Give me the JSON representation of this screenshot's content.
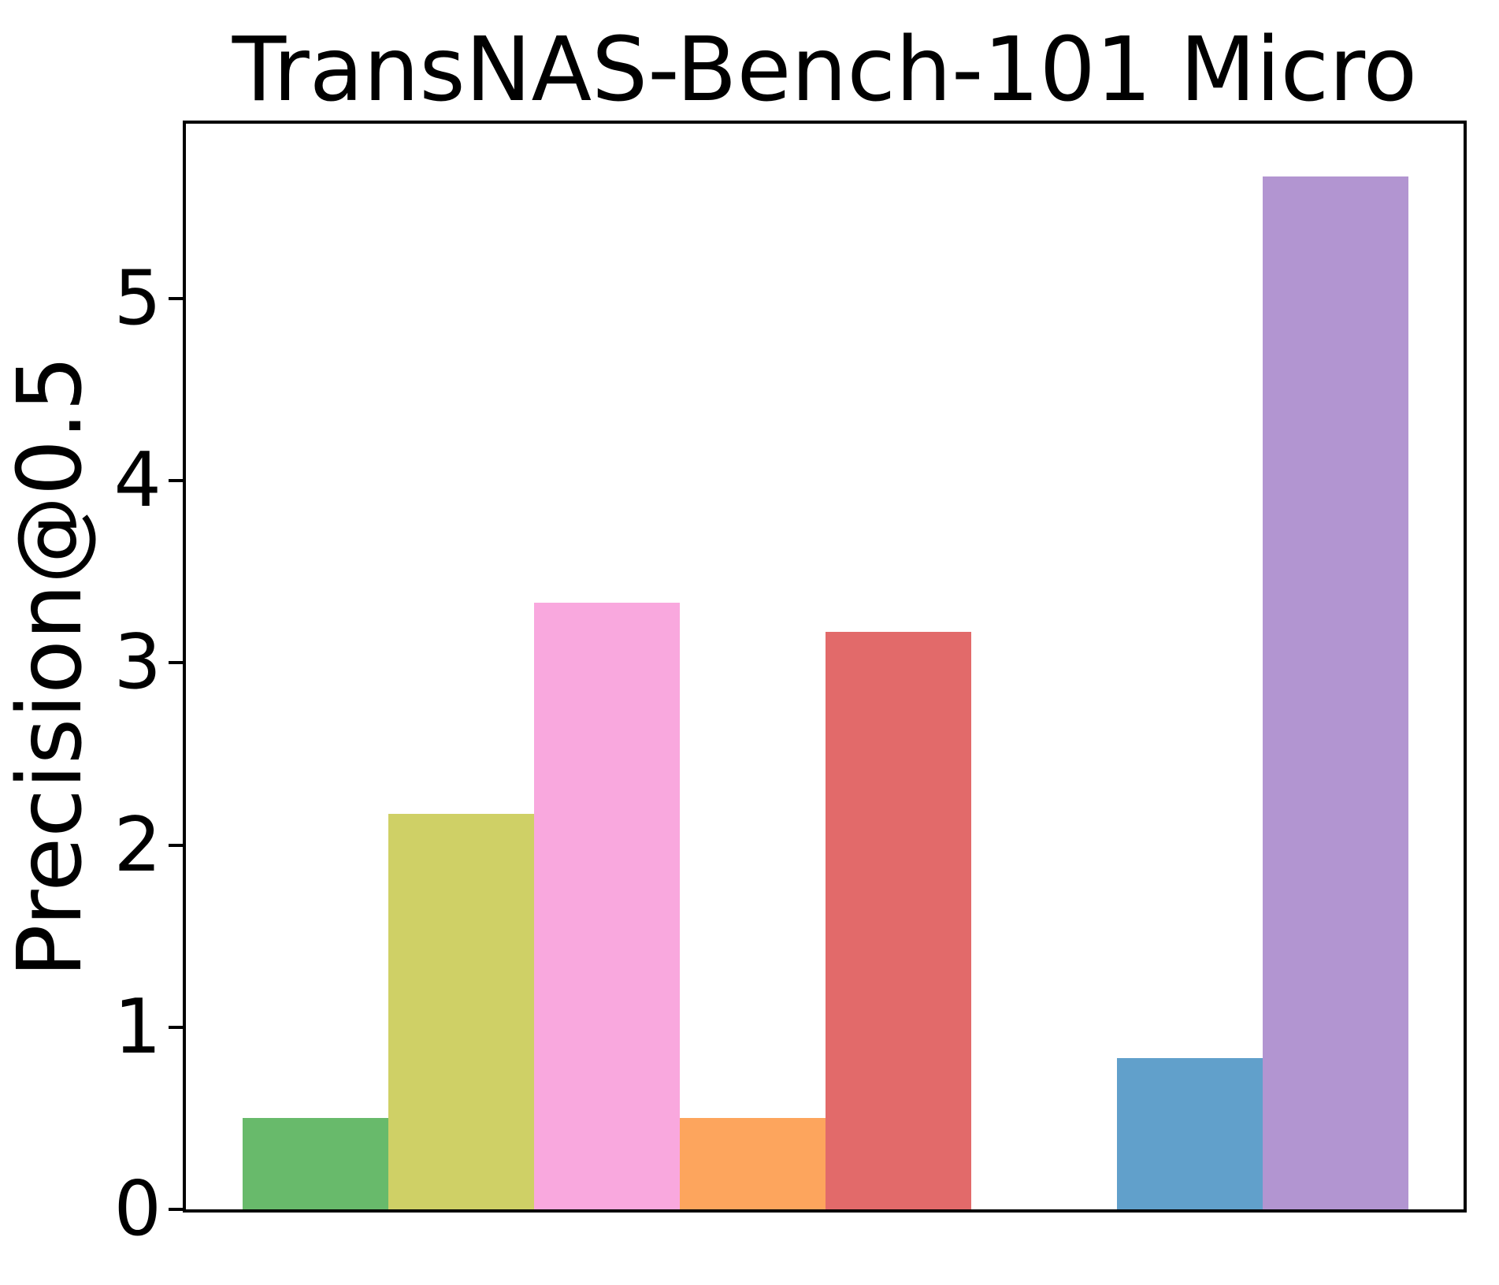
{
  "chart_data": {
    "type": "bar",
    "title": "TransNAS-Bench-101 Micro",
    "xlabel": "",
    "ylabel": "Precision@0.5",
    "ylim": [
      0,
      5.96
    ],
    "yticks": [
      0,
      1,
      2,
      3,
      4,
      5
    ],
    "x_tick_labels": [],
    "grid": false,
    "legend": null,
    "n_slots": 8,
    "bars": [
      {
        "name": "bar-1",
        "slot": 0,
        "value": 0.5,
        "color": "#68ba6b"
      },
      {
        "name": "bar-2",
        "slot": 1,
        "value": 2.17,
        "color": "#cfd066"
      },
      {
        "name": "bar-3",
        "slot": 2,
        "value": 3.33,
        "color": "#f9a8de"
      },
      {
        "name": "bar-4",
        "slot": 3,
        "value": 0.5,
        "color": "#fda55d"
      },
      {
        "name": "bar-5",
        "slot": 4,
        "value": 3.17,
        "color": "#e26a6a"
      },
      {
        "name": "bar-6",
        "slot": 6,
        "value": 0.83,
        "color": "#61a0cb"
      },
      {
        "name": "bar-7",
        "slot": 7,
        "value": 5.67,
        "color": "#b295d1"
      }
    ],
    "colors": {
      "axis": "#000000",
      "background": "#ffffff",
      "text": "#000000"
    }
  }
}
